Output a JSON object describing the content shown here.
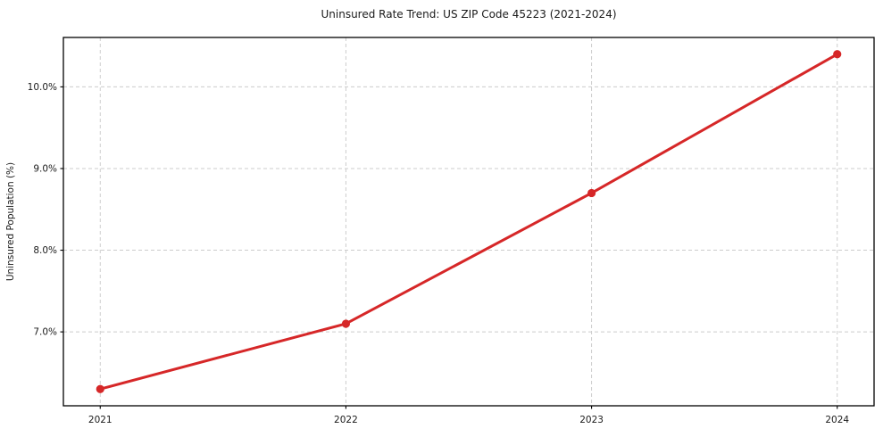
{
  "chart_data": {
    "type": "line",
    "title": "Uninsured Rate Trend: US ZIP Code 45223 (2021-2024)",
    "xlabel": "",
    "ylabel": "Uninsured Population (%)",
    "series": [
      {
        "name": "uninsured-rate",
        "x": [
          2021,
          2022,
          2023,
          2024
        ],
        "values": [
          6.3,
          7.1,
          8.7,
          10.4
        ]
      }
    ],
    "x_ticks": [
      2021,
      2022,
      2023,
      2024
    ],
    "x_tick_labels": [
      "2021",
      "2022",
      "2023",
      "2024"
    ],
    "y_ticks": [
      7.0,
      8.0,
      9.0,
      10.0
    ],
    "y_tick_labels": [
      "7.0%",
      "8.0%",
      "9.0%",
      "10.0%"
    ],
    "xlim": [
      2020.85,
      2024.15
    ],
    "ylim": [
      6.095,
      10.605
    ],
    "grid": "on",
    "grid_style": "dashed",
    "legend_position": "none",
    "colors": {
      "line": "#d62728",
      "marker": "#d62728",
      "grid": "#cccccc",
      "spine": "#000000",
      "background": "#ffffff",
      "text": "#1a1a1a"
    }
  }
}
